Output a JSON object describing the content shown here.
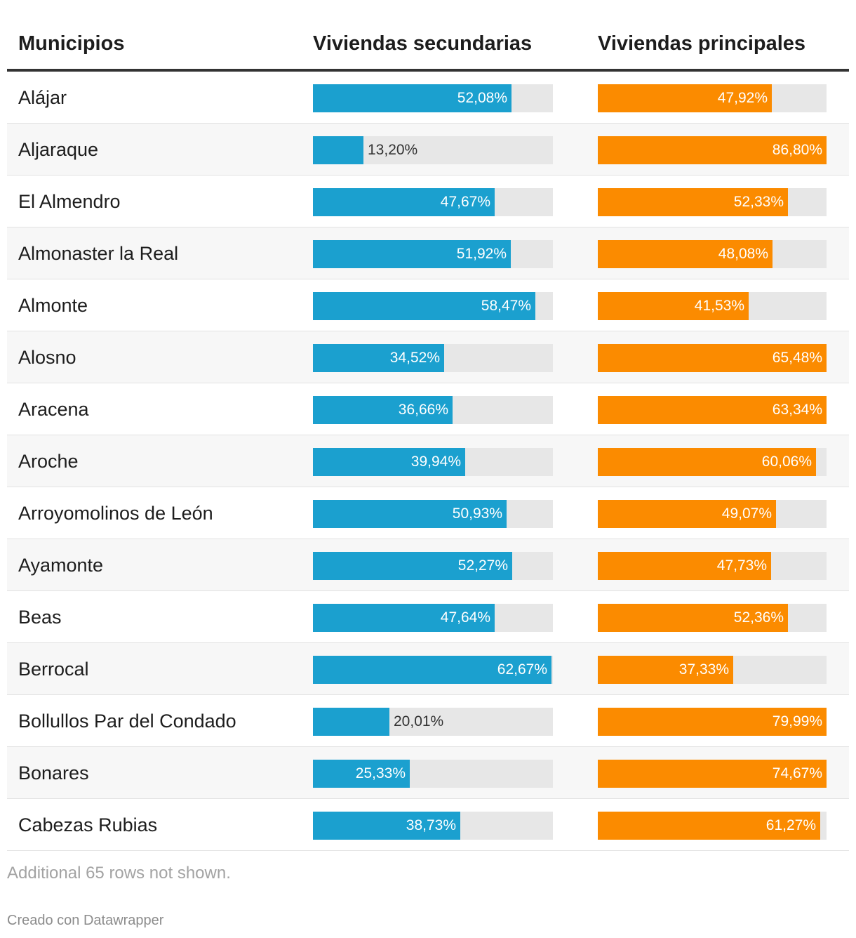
{
  "header": {
    "col_municipio": "Municipios",
    "col_secundarias": "Viviendas secundarias",
    "col_principales": "Viviendas principales"
  },
  "colors": {
    "secundarias": "#1ba0cf",
    "principales": "#fb8b00",
    "track": "#e7e7e7"
  },
  "chart_data": {
    "type": "table",
    "title": "",
    "columns": [
      "Municipios",
      "Viviendas secundarias",
      "Viviendas principales"
    ],
    "bar_max": 63,
    "rows": [
      {
        "municipio": "Alájar",
        "secundarias": 52.08,
        "secundarias_label": "52,08%",
        "principales": 47.92,
        "principales_label": "47,92%"
      },
      {
        "municipio": "Aljaraque",
        "secundarias": 13.2,
        "secundarias_label": "13,20%",
        "principales": 86.8,
        "principales_label": "86,80%"
      },
      {
        "municipio": "El Almendro",
        "secundarias": 47.67,
        "secundarias_label": "47,67%",
        "principales": 52.33,
        "principales_label": "52,33%"
      },
      {
        "municipio": "Almonaster la Real",
        "secundarias": 51.92,
        "secundarias_label": "51,92%",
        "principales": 48.08,
        "principales_label": "48,08%"
      },
      {
        "municipio": "Almonte",
        "secundarias": 58.47,
        "secundarias_label": "58,47%",
        "principales": 41.53,
        "principales_label": "41,53%"
      },
      {
        "municipio": "Alosno",
        "secundarias": 34.52,
        "secundarias_label": "34,52%",
        "principales": 65.48,
        "principales_label": "65,48%"
      },
      {
        "municipio": "Aracena",
        "secundarias": 36.66,
        "secundarias_label": "36,66%",
        "principales": 63.34,
        "principales_label": "63,34%"
      },
      {
        "municipio": "Aroche",
        "secundarias": 39.94,
        "secundarias_label": "39,94%",
        "principales": 60.06,
        "principales_label": "60,06%"
      },
      {
        "municipio": "Arroyomolinos de León",
        "secundarias": 50.93,
        "secundarias_label": "50,93%",
        "principales": 49.07,
        "principales_label": "49,07%"
      },
      {
        "municipio": "Ayamonte",
        "secundarias": 52.27,
        "secundarias_label": "52,27%",
        "principales": 47.73,
        "principales_label": "47,73%"
      },
      {
        "municipio": "Beas",
        "secundarias": 47.64,
        "secundarias_label": "47,64%",
        "principales": 52.36,
        "principales_label": "52,36%"
      },
      {
        "municipio": "Berrocal",
        "secundarias": 62.67,
        "secundarias_label": "62,67%",
        "principales": 37.33,
        "principales_label": "37,33%"
      },
      {
        "municipio": "Bollullos Par del Condado",
        "secundarias": 20.01,
        "secundarias_label": "20,01%",
        "principales": 79.99,
        "principales_label": "79,99%"
      },
      {
        "municipio": "Bonares",
        "secundarias": 25.33,
        "secundarias_label": "25,33%",
        "principales": 74.67,
        "principales_label": "74,67%"
      },
      {
        "municipio": "Cabezas Rubias",
        "secundarias": 38.73,
        "secundarias_label": "38,73%",
        "principales": 61.27,
        "principales_label": "61,27%"
      }
    ]
  },
  "footer": {
    "more_rows": "Additional 65 rows not shown.",
    "credit": "Creado con Datawrapper"
  }
}
